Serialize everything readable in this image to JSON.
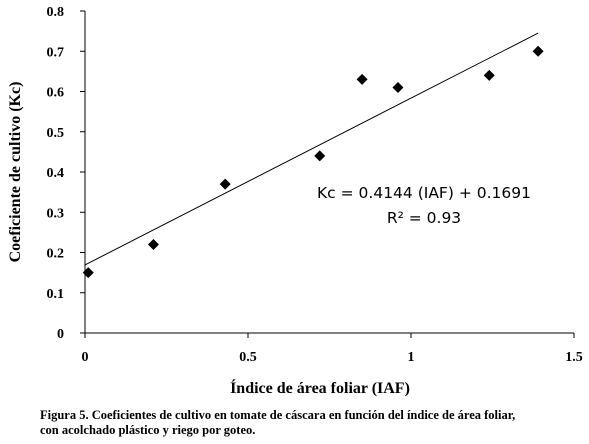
{
  "chart_data": {
    "type": "scatter",
    "xlabel": "Índice de área foliar (IAF)",
    "ylabel": "Coeficiente de cultivo (Kc)",
    "xlim": [
      0,
      1.5
    ],
    "ylim": [
      0,
      0.8
    ],
    "xticks": [
      "0",
      "0.5",
      "1",
      "1.5"
    ],
    "yticks": [
      "0",
      "0.1",
      "0.2",
      "0.3",
      "0.4",
      "0.5",
      "0.6",
      "0.7",
      "0.8"
    ],
    "points": [
      {
        "x": 0.01,
        "y": 0.15
      },
      {
        "x": 0.21,
        "y": 0.22
      },
      {
        "x": 0.43,
        "y": 0.37
      },
      {
        "x": 0.72,
        "y": 0.44
      },
      {
        "x": 0.85,
        "y": 0.63
      },
      {
        "x": 0.96,
        "y": 0.61
      },
      {
        "x": 1.24,
        "y": 0.64
      },
      {
        "x": 1.39,
        "y": 0.7
      }
    ],
    "trendline": {
      "slope": 0.4144,
      "intercept": 0.1691,
      "x_start": 0,
      "x_end": 1.39
    },
    "equation_text": "Kc = 0.4144 (IAF) + 0.1691",
    "r2_text": "R² = 0.93",
    "marker": "diamond",
    "grid": false
  },
  "caption": {
    "line1": "Figura 5. Coeficientes de cultivo en tomate de cáscara en función del índice de área foliar,",
    "line2": "con acolchado plástico y riego por goteo."
  }
}
